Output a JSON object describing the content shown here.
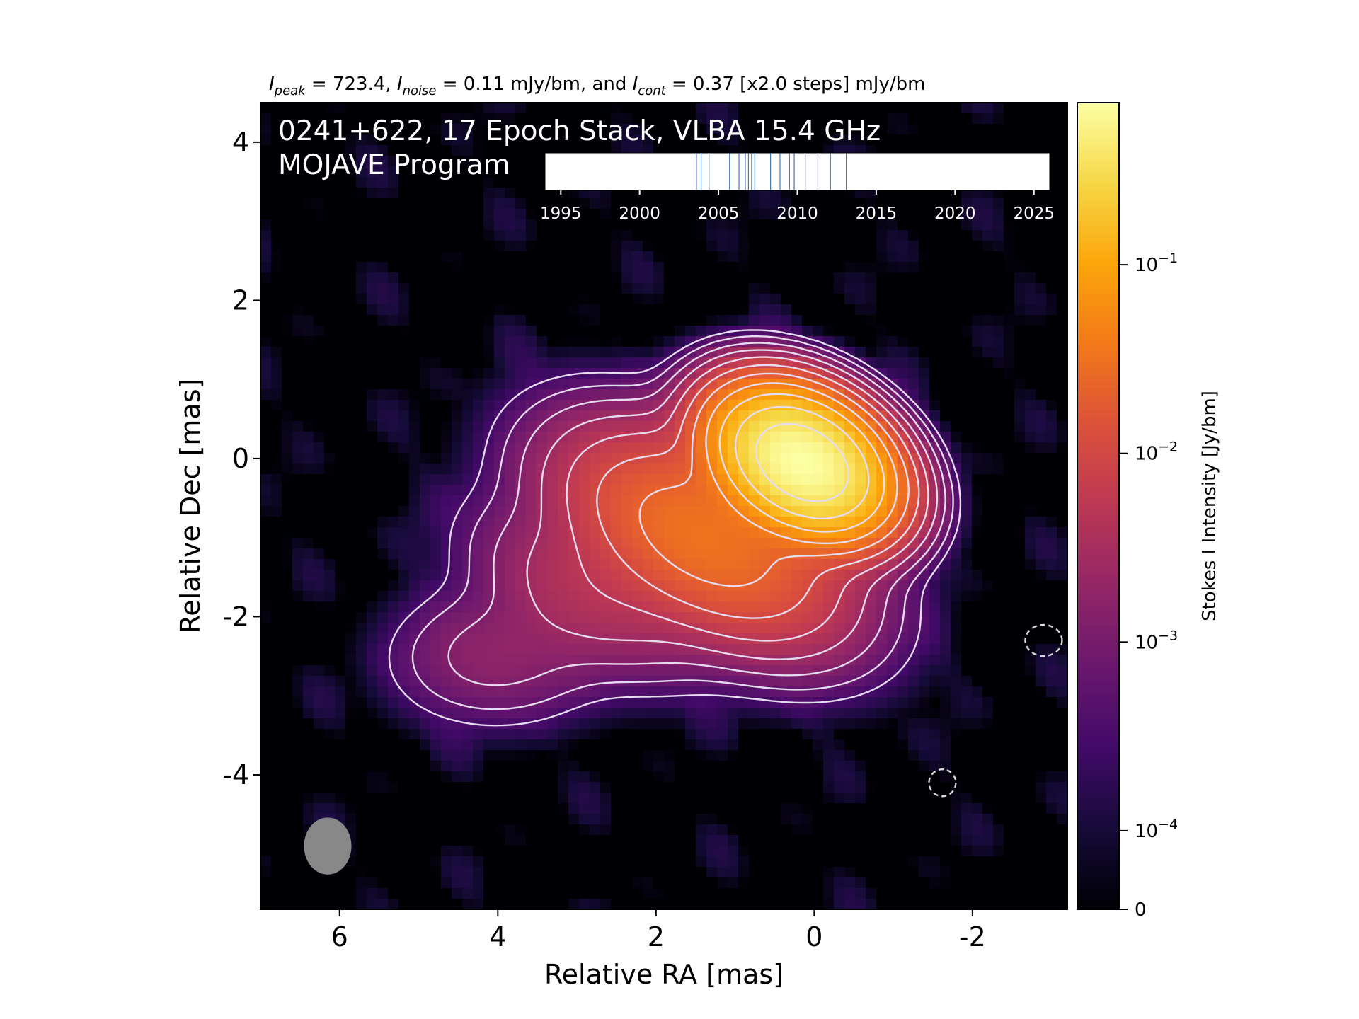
{
  "header": {
    "peak_sym": "I",
    "peak_sub": "peak",
    "peak_val": " = 723.4, ",
    "noise_sym": "I",
    "noise_sub": "noise",
    "noise_val": " = 0.11 mJy/bm, and ",
    "cont_sym": "I",
    "cont_sub": "cont",
    "cont_val": " = 0.37 [x2.0 steps] mJy/bm"
  },
  "panel": {
    "title_line1": "0241+622, 17 Epoch Stack, VLBA 15.4 GHz",
    "title_line2": "MOJAVE Program"
  },
  "chart_data": {
    "type": "heatmap",
    "xlabel": "Relative RA [mas]",
    "ylabel": "Relative Dec [mas]",
    "xlim": [
      7,
      -3.2
    ],
    "ylim": [
      -5.7,
      4.5
    ],
    "xticks": [
      6,
      4,
      2,
      0,
      -2
    ],
    "xtick_labels": [
      "6",
      "4",
      "2",
      "0",
      "-2"
    ],
    "yticks": [
      4,
      2,
      0,
      -2,
      -4
    ],
    "ytick_labels": [
      "4",
      "2",
      "0",
      "-2",
      "-4"
    ],
    "colormap": "inferno",
    "colorbar": {
      "label": "Stokes I Intensity [Jy/bm]",
      "scale": "log",
      "ticks": [
        {
          "value": 0.1,
          "base": "10",
          "exp": "−1"
        },
        {
          "value": 0.01,
          "base": "10",
          "exp": "−2"
        },
        {
          "value": 0.001,
          "base": "10",
          "exp": "−3"
        },
        {
          "value": 0.0001,
          "base": "10",
          "exp": "−4"
        },
        {
          "value": 0,
          "base": "0",
          "exp": ""
        }
      ]
    },
    "components": [
      {
        "ra": 0.15,
        "dec": -0.05,
        "peak": 0.7234,
        "sigma_major": 0.55,
        "sigma_minor": 0.38,
        "pa_deg": 30
      },
      {
        "ra": 1.4,
        "dec": -1.0,
        "peak": 0.035,
        "sigma_major": 1.0,
        "sigma_minor": 0.55,
        "pa_deg": 30
      },
      {
        "ra": 2.9,
        "dec": -1.7,
        "peak": 0.004,
        "sigma_major": 0.85,
        "sigma_minor": 0.45,
        "pa_deg": 30
      },
      {
        "ra": 3.8,
        "dec": -2.45,
        "peak": 0.0016,
        "sigma_major": 0.7,
        "sigma_minor": 0.5,
        "pa_deg": 0
      },
      {
        "ra": 4.5,
        "dec": -2.55,
        "peak": 0.0007,
        "sigma_major": 0.6,
        "sigma_minor": 0.45,
        "pa_deg": 0
      }
    ],
    "contours": {
      "lowest_mJy": 0.37,
      "step_factor": 2.0,
      "count": 11,
      "negative_contours": [
        {
          "ra": -2.9,
          "dec": -2.3
        },
        {
          "ra": -1.62,
          "dec": -4.1
        }
      ]
    },
    "beam": {
      "ra": 6.15,
      "dec": -4.9,
      "major_mas": 0.72,
      "minor_mas": 0.6
    },
    "epoch_timeline": {
      "xlim": [
        1994,
        2026
      ],
      "ticks": [
        1995,
        2000,
        2005,
        2010,
        2015,
        2020,
        2025
      ],
      "epochs": [
        2003.6,
        2003.9,
        2004.4,
        2005.7,
        2006.3,
        2006.7,
        2006.9,
        2007.1,
        2007.3,
        2008.3,
        2008.9,
        2009.5,
        2009.8,
        2010.5,
        2011.3,
        2012.1,
        2013.1
      ]
    },
    "colors": {
      "contour": "#e6dcf0",
      "beam": "#888888",
      "epoch_line": "#4a78b4",
      "background": "#000000"
    }
  }
}
